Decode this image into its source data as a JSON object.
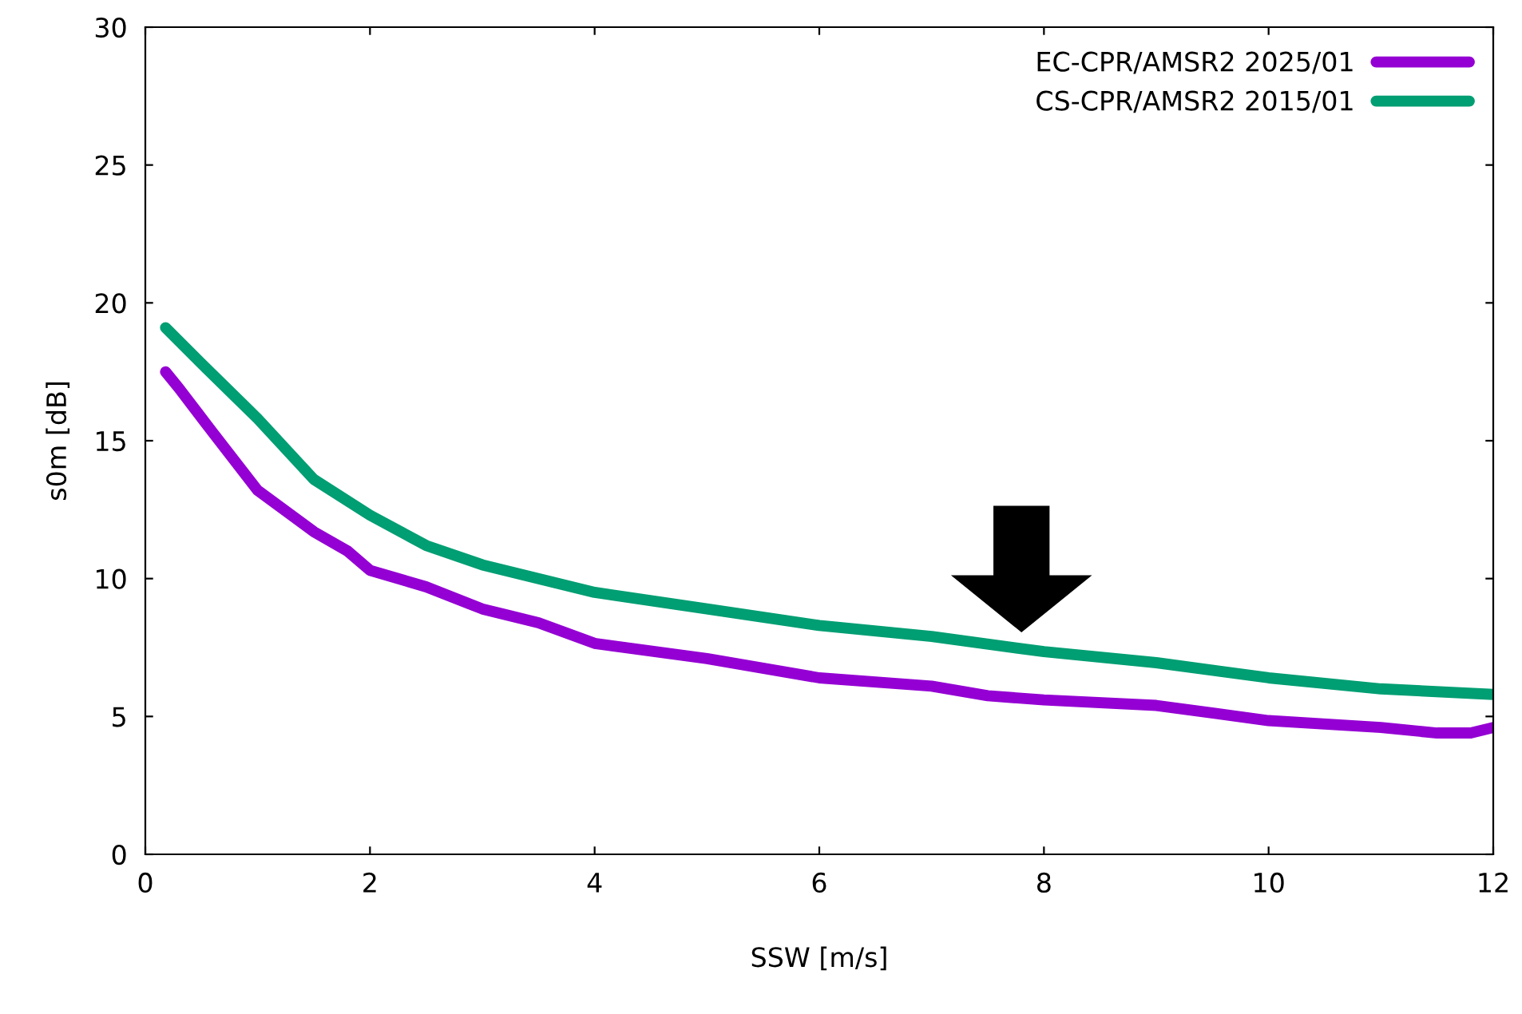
{
  "chart_data": {
    "type": "line",
    "xlabel": "SSW [m/s]",
    "ylabel": "s0m [dB]",
    "xlim": [
      0,
      12
    ],
    "xticks": [
      0,
      2,
      4,
      6,
      8,
      10,
      12
    ],
    "ylim": [
      0,
      30
    ],
    "yticks": [
      0,
      5,
      10,
      15,
      20,
      25,
      30
    ],
    "grid": false,
    "legend": "top right",
    "marker": "none",
    "line_style": "solid",
    "series": [
      {
        "name": "EC-CPR/AMSR2 2025/01",
        "color": "#9400d3",
        "x": [
          0.18,
          0.3,
          0.6,
          1,
          1.5,
          1.8,
          2,
          2.5,
          3,
          3.5,
          4,
          5,
          6,
          7,
          7.5,
          8,
          9,
          10,
          11,
          11.5,
          11.8,
          12
        ],
        "values": [
          17.5,
          16.9,
          15.3,
          13.2,
          11.7,
          11.0,
          10.3,
          9.7,
          8.9,
          8.4,
          7.65,
          7.1,
          6.4,
          6.1,
          5.75,
          5.6,
          5.4,
          4.85,
          4.6,
          4.4,
          4.4,
          4.6
        ]
      },
      {
        "name": "CS-CPR/AMSR2 2015/01",
        "color": "#009e73",
        "x": [
          0.18,
          0.5,
          1,
          1.5,
          2,
          2.5,
          3,
          4,
          5,
          6,
          7,
          8,
          9,
          10,
          11,
          12
        ],
        "values": [
          19.1,
          17.8,
          15.8,
          13.6,
          12.3,
          11.2,
          10.5,
          9.5,
          8.9,
          8.3,
          7.9,
          7.35,
          6.95,
          6.4,
          6.0,
          5.8
        ]
      }
    ]
  }
}
